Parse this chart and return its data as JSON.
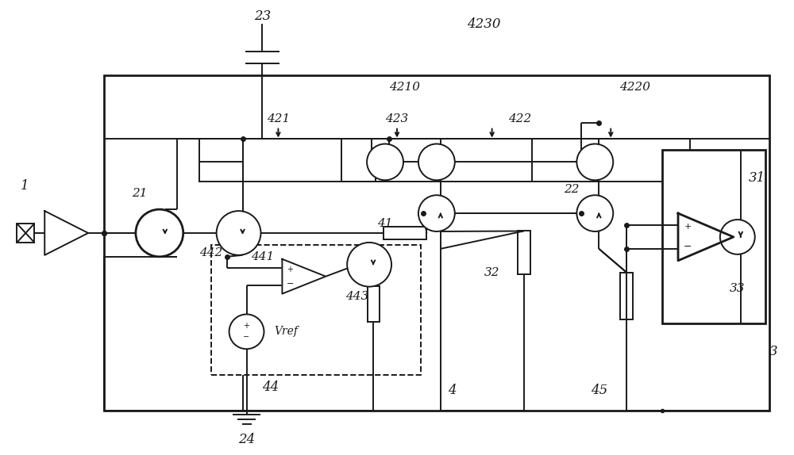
{
  "bg_color": "#ffffff",
  "line_color": "#1a1a1a",
  "fig_width": 10.0,
  "fig_height": 5.74
}
